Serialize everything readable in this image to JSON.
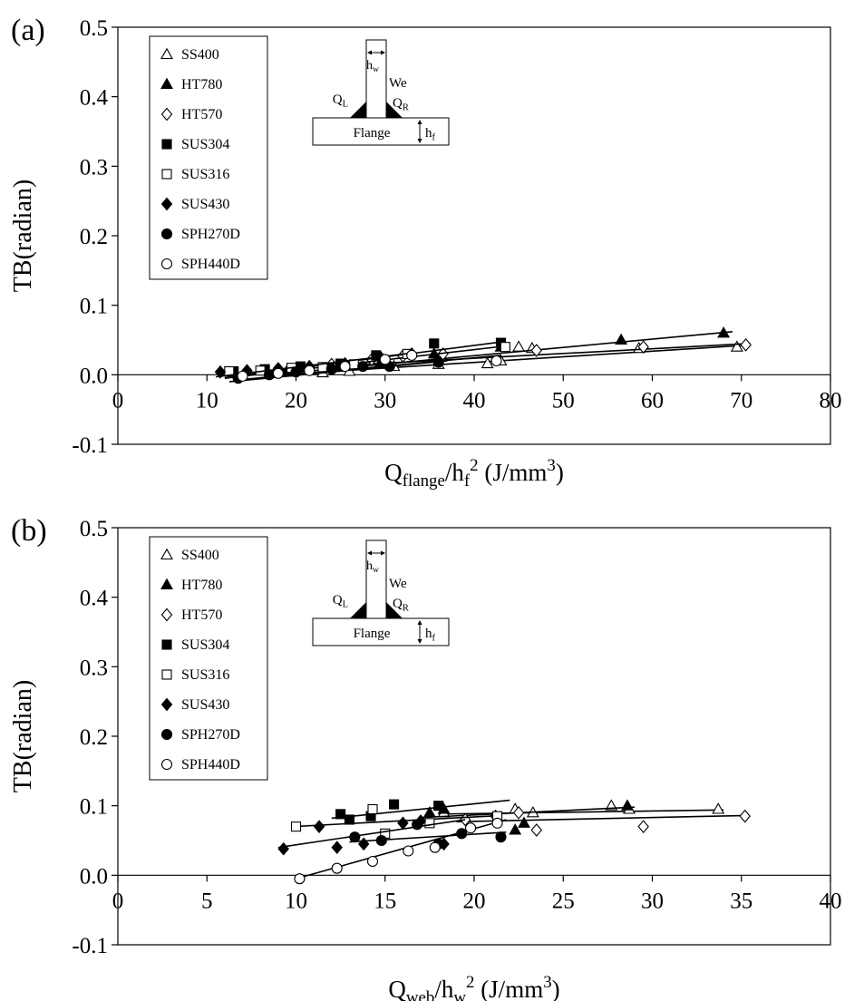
{
  "style": {
    "foreground": "#000000",
    "background": "#ffffff"
  },
  "inset": {
    "hw": [
      {
        "t": "h"
      },
      {
        "t": "w",
        "style": "sub"
      }
    ],
    "We": [
      {
        "t": "We"
      }
    ],
    "QL": [
      {
        "t": "Q"
      },
      {
        "t": "L",
        "style": "sub"
      }
    ],
    "QR": [
      {
        "t": "Q"
      },
      {
        "t": "R",
        "style": "sub"
      }
    ],
    "flange": [
      {
        "t": "Flange"
      }
    ],
    "hf": [
      {
        "t": "h"
      },
      {
        "t": "f",
        "style": "sub"
      }
    ]
  },
  "chart_data": [
    {
      "type": "scatter",
      "panel_label": "(a)",
      "title": "",
      "ylabel": "TB(radian)",
      "xlabel_text": "Qflange/hf2 (J/mm3)",
      "xlabel_parts": [
        {
          "t": "Q"
        },
        {
          "t": "flange",
          "style": "sub"
        },
        {
          "t": "/h"
        },
        {
          "t": "f",
          "style": "sub"
        },
        {
          "t": "2",
          "style": "sup"
        },
        {
          "t": " (J/mm"
        },
        {
          "t": "3",
          "style": "sup"
        },
        {
          "t": ")"
        }
      ],
      "xlim": [
        0,
        80
      ],
      "xticks": [
        0,
        10,
        20,
        30,
        40,
        50,
        60,
        70,
        80
      ],
      "ylim": [
        -0.1,
        0.5
      ],
      "yticks": [
        0.5,
        0.4,
        0.3,
        0.2,
        0.1,
        0.0,
        -0.1
      ],
      "grid": false,
      "legend_position": "top-left",
      "series": [
        {
          "name": "SS400",
          "marker": "triangle-open",
          "points": [
            [
              19.5,
              0.004
            ],
            [
              23,
              0.003
            ],
            [
              26,
              0.005
            ],
            [
              31,
              0.012
            ],
            [
              36,
              0.015
            ],
            [
              41.5,
              0.016
            ],
            [
              43,
              0.02
            ],
            [
              45,
              0.04
            ],
            [
              46.5,
              0.038
            ],
            [
              58.5,
              0.038
            ],
            [
              69.5,
              0.04
            ]
          ],
          "trend": [
            [
              18,
              0.0
            ],
            [
              70,
              0.042
            ]
          ]
        },
        {
          "name": "HT780",
          "marker": "triangle-filled",
          "points": [
            [
              19,
              0.006
            ],
            [
              25,
              0.012
            ],
            [
              29.5,
              0.018
            ],
            [
              35.5,
              0.03
            ],
            [
              43,
              0.04
            ],
            [
              56.5,
              0.05
            ],
            [
              68,
              0.06
            ]
          ],
          "trend": [
            [
              17,
              0.0
            ],
            [
              69,
              0.062
            ]
          ]
        },
        {
          "name": "HT570",
          "marker": "diamond-open",
          "points": [
            [
              24,
              0.015
            ],
            [
              28.5,
              0.022
            ],
            [
              32,
              0.027
            ],
            [
              36.5,
              0.03
            ],
            [
              47,
              0.035
            ],
            [
              59,
              0.04
            ],
            [
              70.5,
              0.043
            ]
          ],
          "trend": [
            [
              23,
              0.012
            ],
            [
              71,
              0.045
            ]
          ]
        },
        {
          "name": "SUS304",
          "marker": "square-filled",
          "points": [
            [
              13,
              0.005
            ],
            [
              16.5,
              0.008
            ],
            [
              20.5,
              0.012
            ],
            [
              25,
              0.016
            ],
            [
              29,
              0.028
            ],
            [
              35.5,
              0.045
            ],
            [
              43,
              0.046
            ]
          ],
          "trend": [
            [
              12,
              -0.004
            ],
            [
              43.5,
              0.048
            ]
          ]
        },
        {
          "name": "SUS316",
          "marker": "square-open",
          "points": [
            [
              12.5,
              0.005
            ],
            [
              16,
              0.006
            ],
            [
              19.5,
              0.01
            ],
            [
              23,
              0.011
            ],
            [
              26.5,
              0.015
            ],
            [
              32.5,
              0.03
            ],
            [
              43.5,
              0.04
            ]
          ],
          "trend": [
            [
              12,
              -0.005
            ],
            [
              44,
              0.042
            ]
          ]
        },
        {
          "name": "SUS430",
          "marker": "diamond-filled",
          "points": [
            [
              11.5,
              0.004
            ],
            [
              14.5,
              0.006
            ],
            [
              18,
              0.009
            ],
            [
              21.5,
              0.012
            ],
            [
              25.5,
              0.016
            ],
            [
              29.5,
              0.025
            ],
            [
              33,
              0.03
            ]
          ],
          "trend": [
            [
              11,
              -0.003
            ],
            [
              33.5,
              0.032
            ]
          ]
        },
        {
          "name": "SPH270D",
          "marker": "circle-filled",
          "points": [
            [
              13.5,
              -0.005
            ],
            [
              17,
              0.0
            ],
            [
              20,
              0.004
            ],
            [
              24,
              0.008
            ],
            [
              27.5,
              0.012
            ],
            [
              30.5,
              0.012
            ],
            [
              36,
              0.018
            ]
          ],
          "trend": [
            [
              12.5,
              -0.01
            ],
            [
              37,
              0.02
            ]
          ]
        },
        {
          "name": "SPH440D",
          "marker": "circle-open",
          "points": [
            [
              14,
              -0.002
            ],
            [
              18,
              0.002
            ],
            [
              21.5,
              0.006
            ],
            [
              25.5,
              0.012
            ],
            [
              30,
              0.022
            ],
            [
              33,
              0.028
            ],
            [
              42.5,
              0.02
            ]
          ],
          "trend": [
            [
              13,
              -0.008
            ],
            [
              43,
              0.028
            ]
          ]
        }
      ]
    },
    {
      "type": "scatter",
      "panel_label": "(b)",
      "title": "",
      "ylabel": "TB(radian)",
      "xlabel_text": "Qweb/hw2 (J/mm3)",
      "xlabel_parts": [
        {
          "t": "Q"
        },
        {
          "t": "web",
          "style": "sub"
        },
        {
          "t": "/h"
        },
        {
          "t": "w",
          "style": "sub"
        },
        {
          "t": "2",
          "style": "sup"
        },
        {
          "t": " (J/mm"
        },
        {
          "t": "3",
          "style": "sup"
        },
        {
          "t": ")"
        }
      ],
      "xlim": [
        0,
        40
      ],
      "xticks": [
        0,
        5,
        10,
        15,
        20,
        25,
        30,
        35,
        40
      ],
      "ylim": [
        -0.1,
        0.5
      ],
      "yticks": [
        0.5,
        0.4,
        0.3,
        0.2,
        0.1,
        0.0,
        -0.1
      ],
      "grid": false,
      "legend_position": "top-left",
      "series": [
        {
          "name": "SS400",
          "marker": "triangle-open",
          "points": [
            [
              18.3,
              0.09
            ],
            [
              22.3,
              0.095
            ],
            [
              23.3,
              0.09
            ],
            [
              27.7,
              0.1
            ],
            [
              28.7,
              0.095
            ],
            [
              33.7,
              0.095
            ]
          ],
          "trend": [
            [
              18,
              0.088
            ],
            [
              34,
              0.094
            ]
          ]
        },
        {
          "name": "HT780",
          "marker": "triangle-filled",
          "points": [
            [
              17.5,
              0.09
            ],
            [
              18.3,
              0.095
            ],
            [
              22.3,
              0.065
            ],
            [
              22.8,
              0.075
            ],
            [
              28.6,
              0.1
            ]
          ],
          "trend": [
            [
              17,
              0.083
            ],
            [
              29,
              0.098
            ]
          ]
        },
        {
          "name": "HT570",
          "marker": "diamond-open",
          "points": [
            [
              19.5,
              0.08
            ],
            [
              21.2,
              0.085
            ],
            [
              22.5,
              0.09
            ],
            [
              23.5,
              0.065
            ],
            [
              29.5,
              0.07
            ],
            [
              35.2,
              0.085
            ]
          ],
          "trend": [
            [
              19,
              0.077
            ],
            [
              35.3,
              0.086
            ]
          ]
        },
        {
          "name": "SUS304",
          "marker": "square-filled",
          "points": [
            [
              12.5,
              0.088
            ],
            [
              13,
              0.08
            ],
            [
              14.2,
              0.085
            ],
            [
              15.5,
              0.102
            ],
            [
              18,
              0.1
            ]
          ],
          "trend": [
            [
              12,
              0.082
            ],
            [
              22,
              0.108
            ]
          ]
        },
        {
          "name": "SUS316",
          "marker": "square-open",
          "points": [
            [
              10,
              0.07
            ],
            [
              14.3,
              0.095
            ],
            [
              15,
              0.06
            ],
            [
              17.5,
              0.075
            ],
            [
              21.3,
              0.085
            ]
          ],
          "trend": [
            [
              9.8,
              0.07
            ],
            [
              21.5,
              0.086
            ]
          ]
        },
        {
          "name": "SUS430",
          "marker": "diamond-filled",
          "points": [
            [
              9.3,
              0.038
            ],
            [
              11.3,
              0.07
            ],
            [
              12.3,
              0.04
            ],
            [
              13.8,
              0.045
            ],
            [
              16,
              0.075
            ],
            [
              17,
              0.078
            ],
            [
              18.3,
              0.045
            ]
          ],
          "trend": [
            [
              9,
              0.04
            ],
            [
              19.5,
              0.08
            ]
          ]
        },
        {
          "name": "SPH270D",
          "marker": "circle-filled",
          "points": [
            [
              13.3,
              0.055
            ],
            [
              14.8,
              0.05
            ],
            [
              16.8,
              0.073
            ],
            [
              18,
              0.045
            ],
            [
              19.3,
              0.06
            ],
            [
              21.5,
              0.055
            ]
          ],
          "trend": [
            [
              13,
              0.048
            ],
            [
              21.8,
              0.062
            ]
          ]
        },
        {
          "name": "SPH440D",
          "marker": "circle-open",
          "points": [
            [
              10.2,
              -0.005
            ],
            [
              12.3,
              0.01
            ],
            [
              14.3,
              0.02
            ],
            [
              16.3,
              0.035
            ],
            [
              17.8,
              0.04
            ],
            [
              19.8,
              0.068
            ],
            [
              21.3,
              0.075
            ]
          ],
          "trend": [
            [
              10,
              -0.005
            ],
            [
              21.8,
              0.08
            ]
          ]
        }
      ]
    }
  ]
}
